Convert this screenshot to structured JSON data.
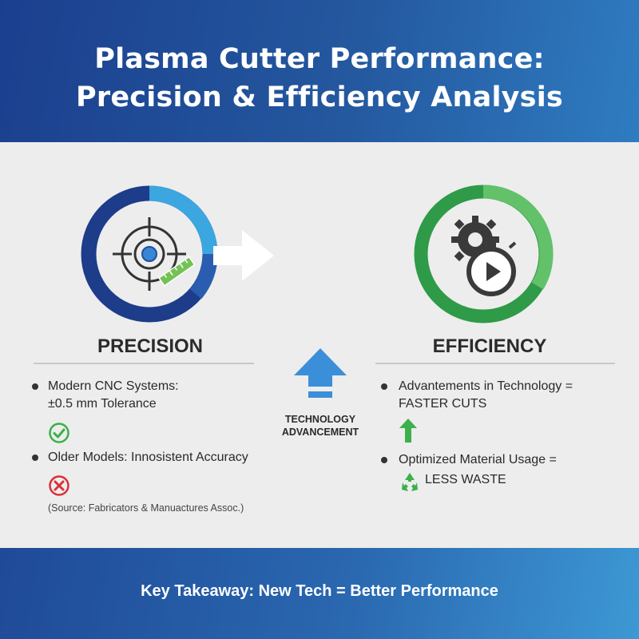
{
  "header": {
    "title_line1": "Plasma Cutter Performance:",
    "title_line2": "Precision & Efficiency Analysis"
  },
  "precision": {
    "heading": "PRECISION",
    "icon": "target-crosshair-ruler-icon",
    "items": [
      {
        "label": "Modern CNC Systems:",
        "detail": "±0.5 mm Tolerance",
        "status_icon": "check-circle-icon",
        "status_color": "#3cb04a"
      },
      {
        "label": "Older Models: Innosistent Accuracy",
        "status_icon": "x-circle-icon",
        "status_color": "#d9313a"
      }
    ],
    "source": "(Source: Fabricators & Manuactures Assoc.)"
  },
  "center": {
    "label_line1": "TECHNOLOGY",
    "label_line2": "ADVANCEMENT",
    "icon": "up-arrow-icon"
  },
  "efficiency": {
    "heading": "EFFICIENCY",
    "icon": "gears-stopwatch-icon",
    "items": [
      {
        "label": "Advantements in Technology =",
        "detail": "FASTER CUTS",
        "status_icon": "green-up-arrow-icon"
      },
      {
        "label": "Optimized Material Usage =",
        "detail": "LESS WASTE",
        "status_icon": "recycle-icon"
      }
    ]
  },
  "footer": {
    "takeaway": "Key Takeaway: New Tech = Better Performance"
  },
  "colors": {
    "navy": "#1d3c8a",
    "light_blue": "#3ba6df",
    "green_dark": "#2f9a48",
    "green_light": "#63c16a",
    "check_green": "#3cb04a",
    "x_red": "#d9313a"
  }
}
